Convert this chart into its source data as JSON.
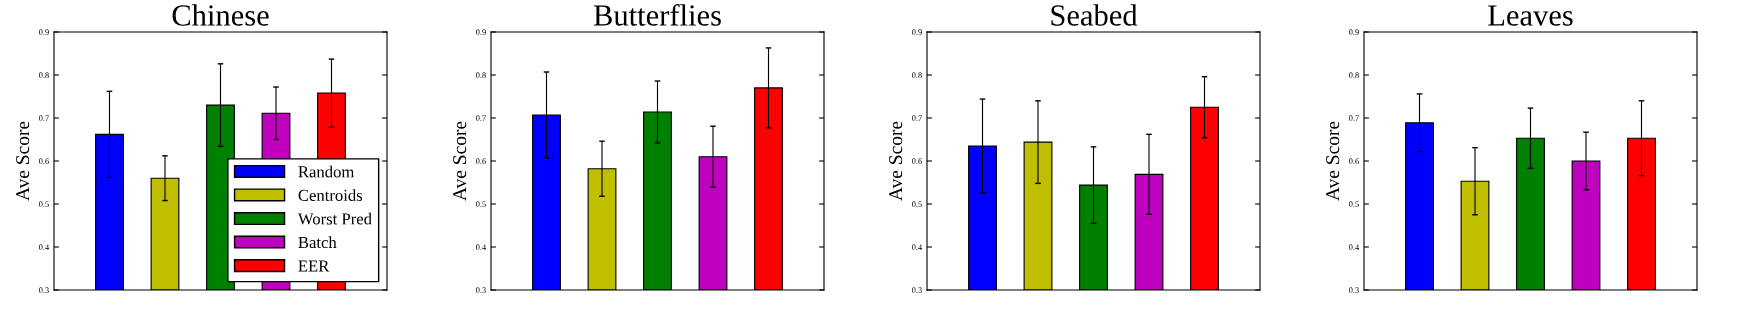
{
  "chart_data": [
    {
      "type": "bar",
      "title": "Chinese",
      "ylabel": "Ave Score",
      "categories": [
        null
      ],
      "ylim": [
        0.3,
        0.9
      ],
      "yticks": [
        0.3,
        0.4,
        0.5,
        0.6,
        0.7,
        0.8,
        0.9
      ],
      "grid": false,
      "legend": "bottom right",
      "series": [
        {
          "name": "Random",
          "color": "#0000ff",
          "values": [
            0.662
          ],
          "errors": [
            0.1
          ]
        },
        {
          "name": "Centroids",
          "color": "#bfbf00",
          "values": [
            0.56
          ],
          "errors": [
            0.052
          ]
        },
        {
          "name": "Worst Pred",
          "color": "#008000",
          "values": [
            0.73
          ],
          "errors": [
            0.096
          ]
        },
        {
          "name": "Batch",
          "color": "#bf00bf",
          "values": [
            0.711
          ],
          "errors": [
            0.061
          ]
        },
        {
          "name": "EER",
          "color": "#ff0000",
          "values": [
            0.758
          ],
          "errors": [
            0.079
          ]
        }
      ]
    },
    {
      "type": "bar",
      "title": "Butterflies",
      "ylabel": "Ave Score",
      "categories": [
        null
      ],
      "ylim": [
        0.3,
        0.9
      ],
      "yticks": [
        0.3,
        0.4,
        0.5,
        0.6,
        0.7,
        0.8,
        0.9
      ],
      "grid": false,
      "series": [
        {
          "color": "#0000ff",
          "values": [
            0.707
          ],
          "errors": [
            0.1
          ]
        },
        {
          "color": "#bfbf00",
          "values": [
            0.582
          ],
          "errors": [
            0.064
          ]
        },
        {
          "color": "#008000",
          "values": [
            0.714
          ],
          "errors": [
            0.072
          ]
        },
        {
          "color": "#bf00bf",
          "values": [
            0.61
          ],
          "errors": [
            0.071
          ]
        },
        {
          "color": "#ff0000",
          "values": [
            0.77
          ],
          "errors": [
            0.093
          ]
        }
      ]
    },
    {
      "type": "bar",
      "title": "Seabed",
      "ylabel": "Ave Score",
      "categories": [
        null
      ],
      "ylim": [
        0.3,
        0.9
      ],
      "yticks": [
        0.3,
        0.4,
        0.5,
        0.6,
        0.7,
        0.8,
        0.9
      ],
      "grid": false,
      "series": [
        {
          "color": "#0000ff",
          "values": [
            0.635
          ],
          "errors": [
            0.109
          ]
        },
        {
          "color": "#bfbf00",
          "values": [
            0.644
          ],
          "errors": [
            0.096
          ]
        },
        {
          "color": "#008000",
          "values": [
            0.544
          ],
          "errors": [
            0.089
          ]
        },
        {
          "color": "#bf00bf",
          "values": [
            0.569
          ],
          "errors": [
            0.093
          ]
        },
        {
          "color": "#ff0000",
          "values": [
            0.725
          ],
          "errors": [
            0.071
          ]
        }
      ]
    },
    {
      "type": "bar",
      "title": "Leaves",
      "ylabel": "Ave Score",
      "categories": [
        null
      ],
      "ylim": [
        0.3,
        0.9
      ],
      "yticks": [
        0.3,
        0.4,
        0.5,
        0.6,
        0.7,
        0.8,
        0.9
      ],
      "grid": false,
      "series": [
        {
          "color": "#0000ff",
          "values": [
            0.689
          ],
          "errors": [
            0.067
          ]
        },
        {
          "color": "#bfbf00",
          "values": [
            0.553
          ],
          "errors": [
            0.078
          ]
        },
        {
          "color": "#008000",
          "values": [
            0.653
          ],
          "errors": [
            0.07
          ]
        },
        {
          "color": "#bf00bf",
          "values": [
            0.6
          ],
          "errors": [
            0.067
          ]
        },
        {
          "color": "#ff0000",
          "values": [
            0.653
          ],
          "errors": [
            0.087
          ]
        }
      ]
    }
  ]
}
